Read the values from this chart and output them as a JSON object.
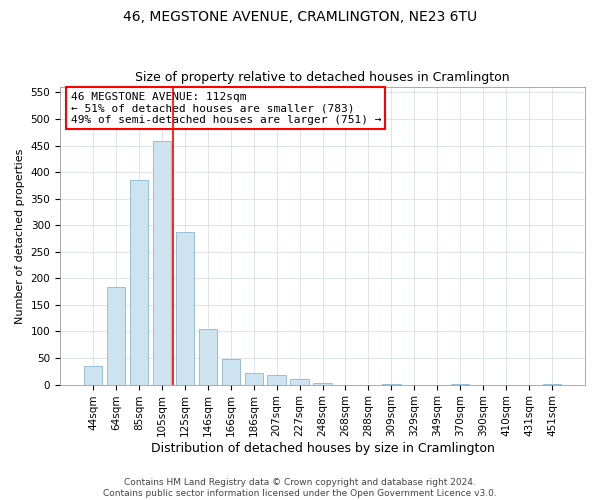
{
  "title": "46, MEGSTONE AVENUE, CRAMLINGTON, NE23 6TU",
  "subtitle": "Size of property relative to detached houses in Cramlington",
  "xlabel": "Distribution of detached houses by size in Cramlington",
  "ylabel": "Number of detached properties",
  "bar_labels": [
    "44sqm",
    "64sqm",
    "85sqm",
    "105sqm",
    "125sqm",
    "146sqm",
    "166sqm",
    "186sqm",
    "207sqm",
    "227sqm",
    "248sqm",
    "268sqm",
    "288sqm",
    "309sqm",
    "329sqm",
    "349sqm",
    "370sqm",
    "390sqm",
    "410sqm",
    "431sqm",
    "451sqm"
  ],
  "bar_values": [
    35,
    183,
    385,
    458,
    288,
    105,
    48,
    22,
    18,
    10,
    3,
    0,
    0,
    2,
    0,
    0,
    2,
    0,
    0,
    0,
    2
  ],
  "bar_color": "#cde4f0",
  "bar_edge_color": "#89b8d4",
  "vline_color": "red",
  "vline_pos": 3.5,
  "ylim": [
    0,
    560
  ],
  "yticks": [
    0,
    50,
    100,
    150,
    200,
    250,
    300,
    350,
    400,
    450,
    500,
    550
  ],
  "annotation_title": "46 MEGSTONE AVENUE: 112sqm",
  "annotation_line1": "← 51% of detached houses are smaller (783)",
  "annotation_line2": "49% of semi-detached houses are larger (751) →",
  "footer1": "Contains HM Land Registry data © Crown copyright and database right 2024.",
  "footer2": "Contains public sector information licensed under the Open Government Licence v3.0.",
  "title_fontsize": 10,
  "subtitle_fontsize": 9,
  "xlabel_fontsize": 9,
  "ylabel_fontsize": 8,
  "tick_fontsize": 7.5,
  "annotation_fontsize": 8,
  "footer_fontsize": 6.5
}
